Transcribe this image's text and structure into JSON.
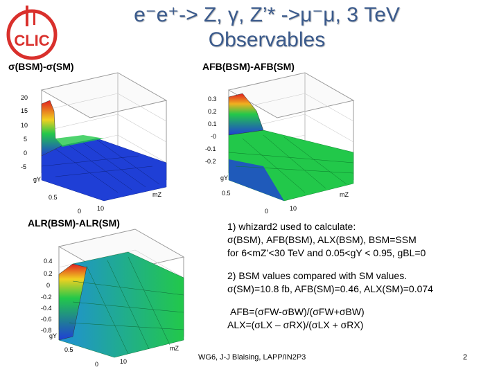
{
  "slide": {
    "title_line1": "e⁻e⁺-> Z, γ, Z’* ->μ⁻μ, 3 TeV",
    "title_line2": "Observables",
    "logo_text": "CLIC",
    "page_number": "2",
    "footer": "WG6, J-J Blaising, LAPP/IN2P3"
  },
  "plots": [
    {
      "label": "σ(BSM)-σ(SM)",
      "z_ticks": [
        "20",
        "15",
        "10",
        "5",
        "0",
        "-5"
      ],
      "y_ticks": [
        "0.5",
        "gY"
      ],
      "x_ticks": [
        "0",
        "10",
        "mZ"
      ]
    },
    {
      "label": "AFB(BSM)-AFB(SM)",
      "z_ticks": [
        "0.3",
        "0.2",
        "0.1",
        "-0",
        "-0.1",
        "-0.2"
      ],
      "y_ticks": [
        "0.5",
        "gY"
      ],
      "x_ticks": [
        "0",
        "10",
        "mZ"
      ]
    },
    {
      "label": "ALR(BSM)-ALR(SM)",
      "z_ticks": [
        "0.4",
        "0.2",
        "0",
        "-0.2",
        "-0.4",
        "-0.6",
        "-0.8"
      ],
      "y_ticks": [
        "0.5",
        "gY"
      ],
      "x_ticks": [
        "0",
        "10",
        "mZ"
      ]
    }
  ],
  "notes": {
    "n1_line1": "1) whizard2 used to calculate:",
    "n1_line2": "σ(BSM),  AFB(BSM),  ALX(BSM),  BSM=SSM",
    "n1_line3": "for  6<mZ’<30 TeV and 0.05<gY < 0.95,  gBL=0",
    "n2_line1": "2) BSM values compared with SM values.",
    "n2_line2": "σ(SM)=10.8 fb, AFB(SM)=0.46, ALX(SM)=0.074",
    "f1": "AFB=(σFW-σBW)/(σFW+σBW)",
    "f2": "ALX=(σLX – σRX)/(σLX + σRX)"
  },
  "colors": {
    "title": "#3a5a8c",
    "logo": "#d9302c",
    "plot_low": "#1f3fd6",
    "plot_mid": "#22c84a",
    "plot_high": "#e02020"
  }
}
